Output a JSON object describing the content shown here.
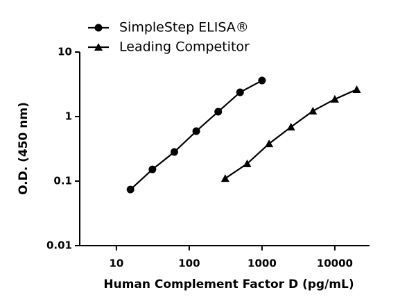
{
  "chart_data": {
    "type": "line",
    "xlabel": "Human Complement Factor D (pg/mL)",
    "ylabel": "O.D. (450 nm)",
    "xscale": "log",
    "yscale": "log",
    "xlim": [
      3,
      30000
    ],
    "ylim": [
      0.01,
      10
    ],
    "xticks": [
      10,
      100,
      1000,
      10000
    ],
    "yticks": [
      0.01,
      0.1,
      1,
      10
    ],
    "legend": "top-left",
    "series": [
      {
        "name": "SimpleStep ELISA®",
        "color": "#000000",
        "marker": "circle",
        "x": [
          15.6,
          31.25,
          62.5,
          125,
          250,
          500,
          1000
        ],
        "values": [
          0.074,
          0.152,
          0.283,
          0.594,
          1.19,
          2.38,
          3.62
        ]
      },
      {
        "name": "Leading Competitor",
        "color": "#000000",
        "marker": "triangle",
        "x": [
          312.5,
          625,
          1250,
          2500,
          5000,
          10000,
          20000
        ],
        "values": [
          0.11,
          0.186,
          0.38,
          0.69,
          1.22,
          1.86,
          2.63
        ]
      }
    ]
  }
}
